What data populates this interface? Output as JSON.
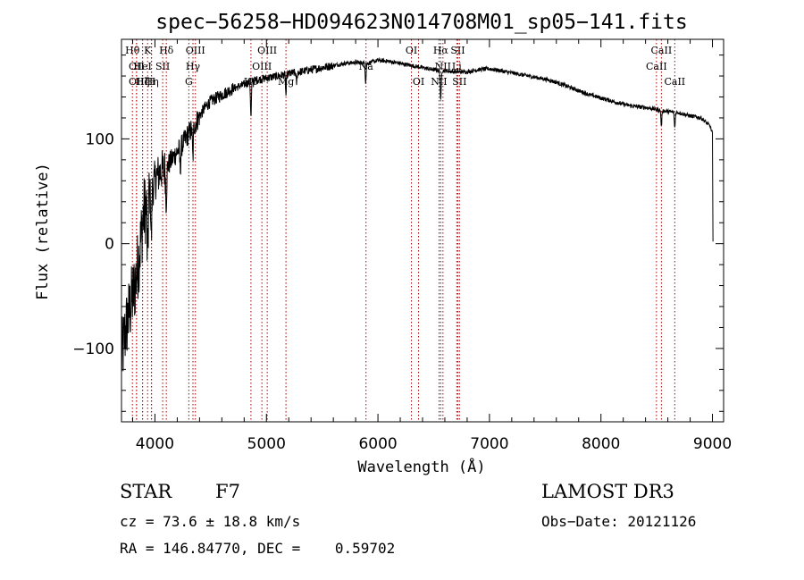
{
  "chart_data": {
    "type": "line",
    "title": "spec−56258−HD094623N014708M01_sp05−141.fits",
    "xlabel": "Wavelength (Å)",
    "ylabel": "Flux (relative)",
    "xlim": [
      3700,
      9100
    ],
    "ylim": [
      -170,
      195
    ],
    "xticks": [
      4000,
      5000,
      6000,
      7000,
      8000,
      9000
    ],
    "yticks": [
      -100,
      0,
      100
    ],
    "ytick_labels": [
      "−100",
      "0",
      "100"
    ],
    "grid": false,
    "series": [
      {
        "name": "flux",
        "anchors": [
          [
            3700,
            -110
          ],
          [
            3740,
            -80
          ],
          [
            3780,
            -60
          ],
          [
            3820,
            -40
          ],
          [
            3860,
            -10
          ],
          [
            3900,
            30
          ],
          [
            3940,
            40
          ],
          [
            3980,
            55
          ],
          [
            4020,
            65
          ],
          [
            4060,
            70
          ],
          [
            4100,
            72
          ],
          [
            4150,
            80
          ],
          [
            4200,
            88
          ],
          [
            4250,
            95
          ],
          [
            4300,
            105
          ],
          [
            4350,
            112
          ],
          [
            4400,
            122
          ],
          [
            4450,
            130
          ],
          [
            4500,
            136
          ],
          [
            4600,
            142
          ],
          [
            4700,
            148
          ],
          [
            4800,
            152
          ],
          [
            4862,
            155
          ],
          [
            4900,
            156
          ],
          [
            5000,
            158
          ],
          [
            5100,
            160
          ],
          [
            5200,
            162
          ],
          [
            5300,
            164
          ],
          [
            5400,
            166
          ],
          [
            5500,
            168
          ],
          [
            5600,
            170
          ],
          [
            5700,
            172
          ],
          [
            5800,
            173
          ],
          [
            5900,
            172
          ],
          [
            6000,
            175
          ],
          [
            6100,
            174
          ],
          [
            6200,
            172
          ],
          [
            6300,
            170
          ],
          [
            6400,
            168
          ],
          [
            6500,
            166
          ],
          [
            6600,
            165
          ],
          [
            6700,
            164
          ],
          [
            6800,
            164
          ],
          [
            6900,
            166
          ],
          [
            7000,
            167
          ],
          [
            7100,
            165
          ],
          [
            7200,
            163
          ],
          [
            7300,
            161
          ],
          [
            7400,
            159
          ],
          [
            7500,
            157
          ],
          [
            7600,
            154
          ],
          [
            7700,
            150
          ],
          [
            7800,
            146
          ],
          [
            7900,
            142
          ],
          [
            8000,
            139
          ],
          [
            8100,
            136
          ],
          [
            8200,
            133
          ],
          [
            8300,
            131
          ],
          [
            8400,
            130
          ],
          [
            8500,
            128
          ],
          [
            8600,
            126
          ],
          [
            8700,
            125
          ],
          [
            8800,
            122
          ],
          [
            8900,
            120
          ],
          [
            8980,
            112
          ],
          [
            9000,
            105
          ],
          [
            9005,
            2
          ]
        ],
        "absorption_features": [
          [
            3934,
            -60
          ],
          [
            3968,
            -45
          ],
          [
            4101,
            -35
          ],
          [
            4227,
            -20
          ],
          [
            4340,
            -30
          ],
          [
            4861,
            -35
          ],
          [
            5175,
            -20
          ],
          [
            5270,
            -10
          ],
          [
            5890,
            -18
          ],
          [
            6563,
            -30
          ],
          [
            8542,
            -15
          ],
          [
            8662,
            -15
          ]
        ]
      }
    ],
    "lines": [
      {
        "wavelength": 3798,
        "label": "Hθ",
        "row": 0
      },
      {
        "wavelength": 3835,
        "label": "OII",
        "row": 1
      },
      {
        "wavelength": 3835,
        "label": "OII",
        "row": 2
      },
      {
        "wavelength": 3889,
        "label": "Hζ",
        "row": 2
      },
      {
        "wavelength": 3934,
        "label": "K",
        "row": 0
      },
      {
        "wavelength": 3889,
        "label": "HeI",
        "row": 1
      },
      {
        "wavelength": 3970,
        "label": "Hη",
        "row": 2
      },
      {
        "wavelength": 3968,
        "label": "H",
        "row": 2
      },
      {
        "wavelength": 4069,
        "label": "SII",
        "row": 1
      },
      {
        "wavelength": 4102,
        "label": "Hδ",
        "row": 0
      },
      {
        "wavelength": 4304,
        "label": "G",
        "row": 2
      },
      {
        "wavelength": 4341,
        "label": "Hγ",
        "row": 1
      },
      {
        "wavelength": 4363,
        "label": "OIII",
        "row": 0
      },
      {
        "wavelength": 4861,
        "label": "Hβ",
        "row": 2
      },
      {
        "wavelength": 4959,
        "label": "OIII",
        "row": 1
      },
      {
        "wavelength": 5007,
        "label": "OIII",
        "row": 0
      },
      {
        "wavelength": 5175,
        "label": "Mg",
        "row": 2
      },
      {
        "wavelength": 5893,
        "label": "Na",
        "row": 1
      },
      {
        "wavelength": 6300,
        "label": "OI",
        "row": 0
      },
      {
        "wavelength": 6364,
        "label": "OI",
        "row": 2
      },
      {
        "wavelength": 6548,
        "label": "NII",
        "row": 2
      },
      {
        "wavelength": 6563,
        "label": "Hα",
        "row": 0
      },
      {
        "wavelength": 6583,
        "label": "NII",
        "row": 1
      },
      {
        "wavelength": 6707,
        "label": "Li",
        "row": 1
      },
      {
        "wavelength": 6716,
        "label": "SII",
        "row": 0
      },
      {
        "wavelength": 6731,
        "label": "SII",
        "row": 2
      },
      {
        "wavelength": 8498,
        "label": "CaII",
        "row": 1
      },
      {
        "wavelength": 8542,
        "label": "CaII",
        "row": 0
      },
      {
        "wavelength": 8662,
        "label": "CaII",
        "row": 2
      }
    ]
  },
  "info": {
    "object_class": "STAR",
    "subclass": "F7",
    "survey": "LAMOST DR3",
    "cz_line": "cz = 73.6 ± 18.8 km/s",
    "obs_date_line": "Obs−Date: 20121126",
    "radec_line": "RA = 146.84770, DEC =    0.59702"
  },
  "colors": {
    "spectrum": "#000000",
    "line_markers": "#b00000",
    "axes": "#000000"
  }
}
